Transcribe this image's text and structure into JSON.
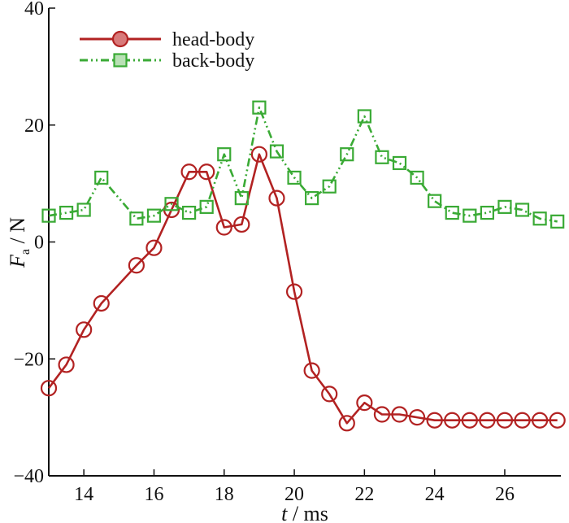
{
  "chart_data": {
    "type": "line",
    "title": "",
    "xlabel": {
      "var": "t",
      "unit": "ms"
    },
    "ylabel": {
      "var": "F",
      "sub": "a",
      "unit": "N"
    },
    "xlim": [
      13,
      27.6
    ],
    "ylim": [
      -40,
      40
    ],
    "x_ticks": [
      14,
      16,
      18,
      20,
      22,
      24,
      26
    ],
    "y_ticks": [
      -40,
      -20,
      0,
      20,
      40
    ],
    "grid": false,
    "legend_position": "top-left",
    "series": [
      {
        "name": "head-body",
        "color": "#b22222",
        "marker": "circle",
        "line_style": "solid",
        "x": [
          13.0,
          13.5,
          14.0,
          14.5,
          15.5,
          16.0,
          16.5,
          17.0,
          17.5,
          18.0,
          18.5,
          19.0,
          19.5,
          20.0,
          20.5,
          21.0,
          21.5,
          22.0,
          22.5,
          23.0,
          23.5,
          24.0,
          24.5,
          25.0,
          25.5,
          26.0,
          26.5,
          27.0,
          27.5
        ],
        "y": [
          -25.0,
          -21.0,
          -15.0,
          -10.5,
          -4.0,
          -1.0,
          5.5,
          12.0,
          12.0,
          2.5,
          3.0,
          15.0,
          7.5,
          -8.5,
          -22.0,
          -26.0,
          -31.0,
          -27.5,
          -29.5,
          -29.5,
          -30.0,
          -30.5,
          -30.5,
          -30.5,
          -30.5,
          -30.5,
          -30.5,
          -30.5,
          -30.5
        ]
      },
      {
        "name": "back-body",
        "color": "#3aaa35",
        "marker": "square",
        "line_style": "dash-dot-dot",
        "x": [
          13.0,
          13.5,
          14.0,
          14.5,
          15.5,
          16.0,
          16.5,
          17.0,
          17.5,
          18.0,
          18.5,
          19.0,
          19.5,
          20.0,
          20.5,
          21.0,
          21.5,
          22.0,
          22.5,
          23.0,
          23.5,
          24.0,
          24.5,
          25.0,
          25.5,
          26.0,
          26.5,
          27.0,
          27.5
        ],
        "y": [
          4.5,
          5.0,
          5.5,
          11.0,
          4.0,
          4.5,
          6.5,
          5.0,
          6.0,
          15.0,
          7.5,
          23.0,
          15.5,
          11.0,
          7.5,
          9.5,
          15.0,
          21.5,
          14.5,
          13.5,
          11.0,
          7.0,
          5.0,
          4.5,
          5.0,
          6.0,
          5.5,
          4.0,
          3.5
        ]
      }
    ]
  }
}
